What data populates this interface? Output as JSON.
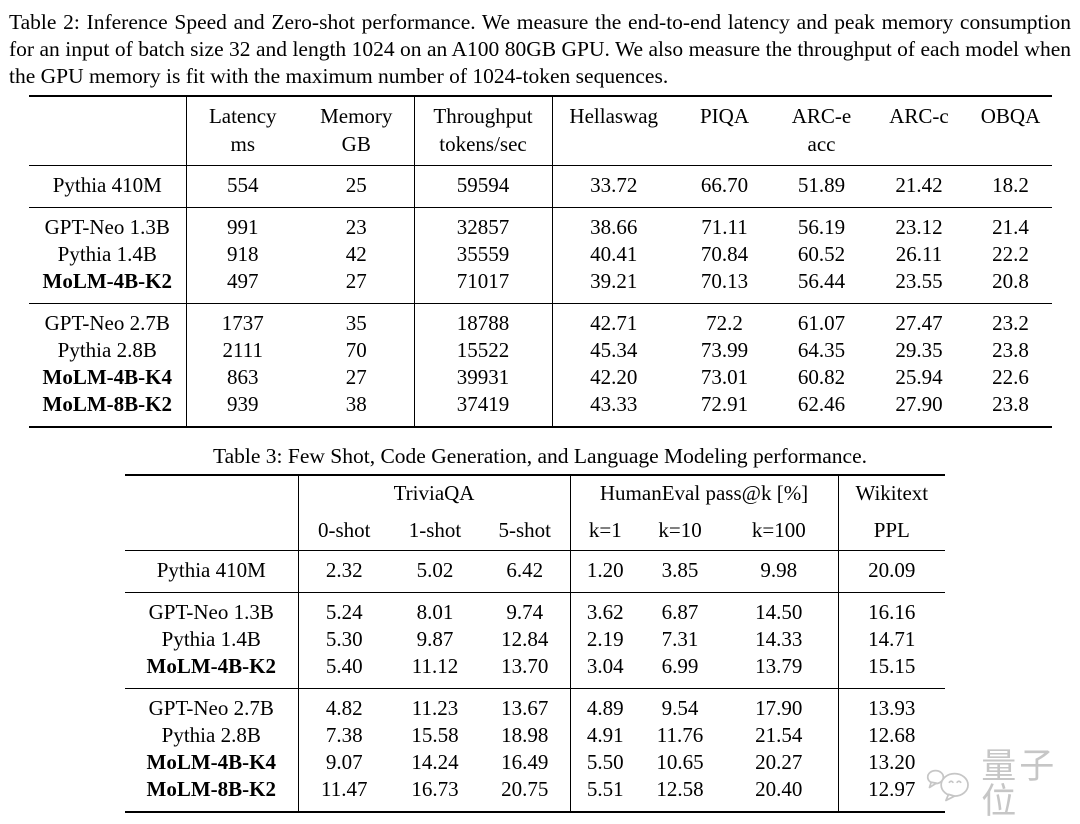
{
  "colors": {
    "background": "#ffffff",
    "text": "#000000",
    "rule": "#000000",
    "watermark": "#c6c6c6"
  },
  "table2": {
    "caption": "Table 2: Inference Speed and Zero-shot performance. We measure the end-to-end latency and peak memory consumption for an input of batch size 32 and length 1024 on an A100 80GB GPU. We also measure the throughput of each model when the GPU memory is fit with the maximum number of 1024-token sequences.",
    "columns": [
      {
        "line1": "",
        "line2": ""
      },
      {
        "line1": "Latency",
        "line2": "ms"
      },
      {
        "line1": "Memory",
        "line2": "GB"
      },
      {
        "line1": "Throughput",
        "line2": "tokens/sec"
      },
      {
        "line1": "Hellaswag",
        "line2": ""
      },
      {
        "line1": "PIQA",
        "line2": ""
      },
      {
        "line1": "ARC-e",
        "line2": "acc"
      },
      {
        "line1": "ARC-c",
        "line2": ""
      },
      {
        "line1": "OBQA",
        "line2": ""
      }
    ],
    "groups": [
      {
        "rows": [
          {
            "model": "Pythia 410M",
            "bold": false,
            "values": [
              "554",
              "25",
              "59594",
              "33.72",
              "66.70",
              "51.89",
              "21.42",
              "18.2"
            ]
          }
        ]
      },
      {
        "rows": [
          {
            "model": "GPT-Neo 1.3B",
            "bold": false,
            "values": [
              "991",
              "23",
              "32857",
              "38.66",
              "71.11",
              "56.19",
              "23.12",
              "21.4"
            ]
          },
          {
            "model": "Pythia 1.4B",
            "bold": false,
            "values": [
              "918",
              "42",
              "35559",
              "40.41",
              "70.84",
              "60.52",
              "26.11",
              "22.2"
            ]
          },
          {
            "model": "MoLM-4B-K2",
            "bold": true,
            "values": [
              "497",
              "27",
              "71017",
              "39.21",
              "70.13",
              "56.44",
              "23.55",
              "20.8"
            ]
          }
        ]
      },
      {
        "rows": [
          {
            "model": "GPT-Neo 2.7B",
            "bold": false,
            "values": [
              "1737",
              "35",
              "18788",
              "42.71",
              "72.2",
              "61.07",
              "27.47",
              "23.2"
            ]
          },
          {
            "model": "Pythia 2.8B",
            "bold": false,
            "values": [
              "2111",
              "70",
              "15522",
              "45.34",
              "73.99",
              "64.35",
              "29.35",
              "23.8"
            ]
          },
          {
            "model": "MoLM-4B-K4",
            "bold": true,
            "values": [
              "863",
              "27",
              "39931",
              "42.20",
              "73.01",
              "60.82",
              "25.94",
              "22.6"
            ]
          },
          {
            "model": "MoLM-8B-K2",
            "bold": true,
            "values": [
              "939",
              "38",
              "37419",
              "43.33",
              "72.91",
              "62.46",
              "27.90",
              "23.8"
            ]
          }
        ]
      }
    ]
  },
  "table3": {
    "caption": "Table 3: Few Shot, Code Generation, and Language Modeling performance.",
    "header": {
      "group1": "TriviaQA",
      "group2": "HumanEval pass@k [%]",
      "group3": "Wikitext",
      "sub": [
        "0-shot",
        "1-shot",
        "5-shot",
        "k=1",
        "k=10",
        "k=100",
        "PPL"
      ]
    },
    "groups": [
      {
        "rows": [
          {
            "model": "Pythia 410M",
            "bold": false,
            "values": [
              "2.32",
              "5.02",
              "6.42",
              "1.20",
              "3.85",
              "9.98",
              "20.09"
            ]
          }
        ]
      },
      {
        "rows": [
          {
            "model": "GPT-Neo 1.3B",
            "bold": false,
            "values": [
              "5.24",
              "8.01",
              "9.74",
              "3.62",
              "6.87",
              "14.50",
              "16.16"
            ]
          },
          {
            "model": "Pythia 1.4B",
            "bold": false,
            "values": [
              "5.30",
              "9.87",
              "12.84",
              "2.19",
              "7.31",
              "14.33",
              "14.71"
            ]
          },
          {
            "model": "MoLM-4B-K2",
            "bold": true,
            "values": [
              "5.40",
              "11.12",
              "13.70",
              "3.04",
              "6.99",
              "13.79",
              "15.15"
            ]
          }
        ]
      },
      {
        "rows": [
          {
            "model": "GPT-Neo 2.7B",
            "bold": false,
            "values": [
              "4.82",
              "11.23",
              "13.67",
              "4.89",
              "9.54",
              "17.90",
              "13.93"
            ]
          },
          {
            "model": "Pythia 2.8B",
            "bold": false,
            "values": [
              "7.38",
              "15.58",
              "18.98",
              "4.91",
              "11.76",
              "21.54",
              "12.68"
            ]
          },
          {
            "model": "MoLM-4B-K4",
            "bold": true,
            "values": [
              "9.07",
              "14.24",
              "16.49",
              "5.50",
              "10.65",
              "20.27",
              "13.20"
            ]
          },
          {
            "model": "MoLM-8B-K2",
            "bold": true,
            "values": [
              "11.47",
              "16.73",
              "20.75",
              "5.51",
              "12.58",
              "20.40",
              "12.97"
            ]
          }
        ]
      }
    ]
  },
  "watermark": {
    "text": "量子位",
    "logo": "chat-bubbles-logo"
  }
}
